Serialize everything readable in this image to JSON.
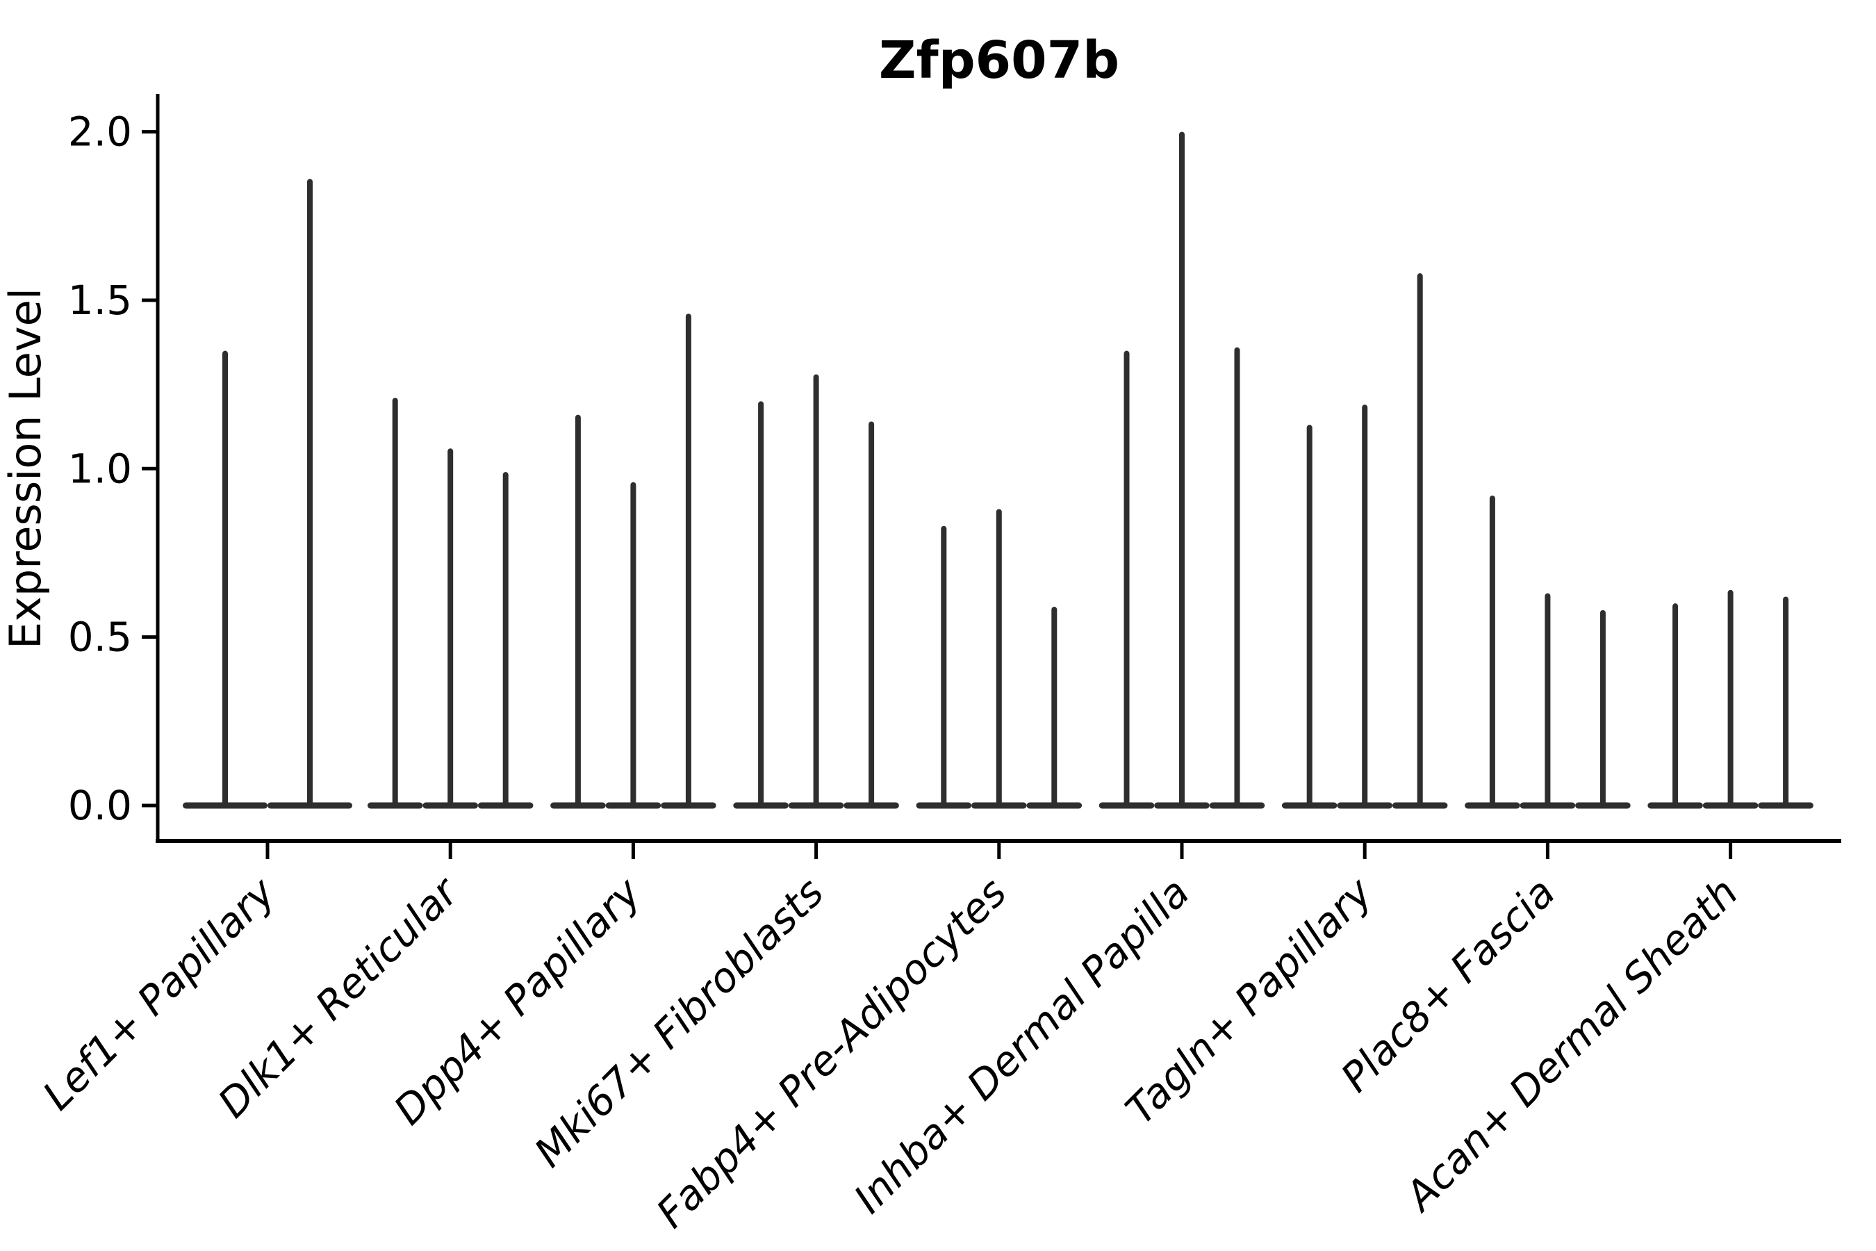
{
  "chart_data": {
    "type": "violin",
    "title": "Zfp607b",
    "ylabel": "Expression Level",
    "xlabel": "",
    "ylim": [
      -0.1,
      2.1
    ],
    "ytick_values": [
      0.0,
      0.5,
      1.0,
      1.5,
      2.0
    ],
    "ytick_labels": [
      "0.0",
      "0.5",
      "1.0",
      "1.5",
      "2.0"
    ],
    "grid": false,
    "legend": null,
    "categories": [
      "Lef1+ Papillary",
      "Dlk1+ Reticular",
      "Dpp4+ Papillary",
      "Mki67+ Fibroblasts",
      "Fabp4+ Pre-Adipocytes",
      "Inhba+ Dermal Papilla",
      "Tagln+ Papillary",
      "Plac8+ Fascia",
      "Acan+ Dermal Sheath"
    ],
    "groups": [
      {
        "category": "Lef1+ Papillary",
        "violin_max": [
          1.35,
          1.86
        ]
      },
      {
        "category": "Dlk1+ Reticular",
        "violin_max": [
          1.21,
          1.06,
          0.99
        ]
      },
      {
        "category": "Dpp4+ Papillary",
        "violin_max": [
          1.16,
          0.96,
          1.46
        ]
      },
      {
        "category": "Mki67+ Fibroblasts",
        "violin_max": [
          1.2,
          1.28,
          1.14
        ]
      },
      {
        "category": "Fabp4+ Pre-Adipocytes",
        "violin_max": [
          0.83,
          0.88,
          0.59
        ]
      },
      {
        "category": "Inhba+ Dermal Papilla",
        "violin_max": [
          1.35,
          2.0,
          1.36
        ]
      },
      {
        "category": "Tagln+ Papillary",
        "violin_max": [
          1.13,
          1.19,
          1.58
        ]
      },
      {
        "category": "Plac8+ Fascia",
        "violin_max": [
          0.92,
          0.63,
          0.58
        ]
      },
      {
        "category": "Acan+ Dermal Sheath",
        "violin_max": [
          0.6,
          0.64,
          0.62
        ]
      }
    ],
    "violin_baseline_value": 0.0,
    "colors": {
      "violin": "#2e2e2e",
      "axis": "#000000",
      "text": "#000000",
      "background": "#ffffff"
    }
  }
}
